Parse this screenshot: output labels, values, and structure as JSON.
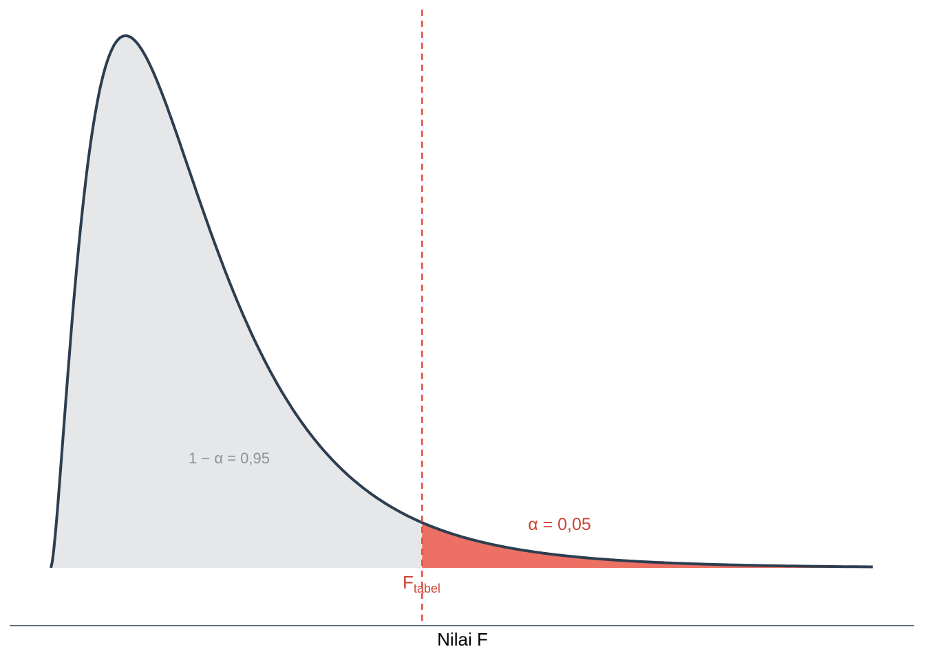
{
  "chart_data": {
    "type": "area",
    "distribution": "F",
    "df1": 5,
    "df2": 20,
    "xlim": [
      0,
      6
    ],
    "critical_value": 2.71,
    "xlabel": "Nilai F",
    "ylabel": "",
    "grid": false,
    "annotations": {
      "acceptance": "1 − α = 0,95",
      "rejection": "α = 0,05",
      "critical_main": "F",
      "critical_sub": "tabel"
    },
    "colors": {
      "curve": "#2c3e50",
      "acceptance_fill": "#e5e7e9",
      "rejection_fill": "#ec7063",
      "critical_line": "#e74c3c",
      "acceptance_text": "#8c9396",
      "rejection_text": "#cb4335",
      "axis": "#2c3e50"
    }
  }
}
